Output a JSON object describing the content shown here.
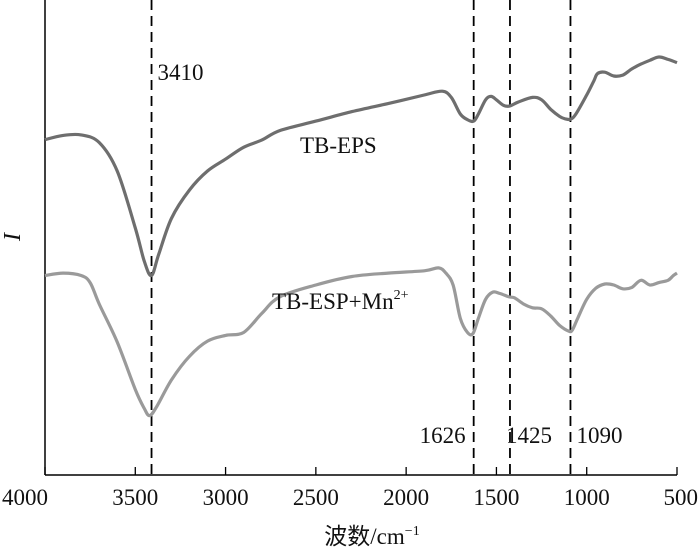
{
  "chart_data": {
    "type": "line",
    "title": "",
    "xlabel": "波数/cm",
    "xlabel_sup": "−1",
    "ylabel": "I",
    "xlim": [
      4000,
      500
    ],
    "x_reversed": true,
    "xticks": [
      4000,
      3500,
      3000,
      2500,
      2000,
      1500,
      1000,
      500
    ],
    "ytick_labels": false,
    "grid": false,
    "series": [
      {
        "name": "TB-EPS",
        "label_sup": "",
        "color": "#6e6e6e",
        "points": [
          [
            4000,
            0.706
          ],
          [
            3900,
            0.715
          ],
          [
            3800,
            0.716
          ],
          [
            3700,
            0.7
          ],
          [
            3600,
            0.64
          ],
          [
            3500,
            0.52
          ],
          [
            3450,
            0.45
          ],
          [
            3410,
            0.42
          ],
          [
            3370,
            0.465
          ],
          [
            3300,
            0.54
          ],
          [
            3200,
            0.6
          ],
          [
            3100,
            0.64
          ],
          [
            3000,
            0.665
          ],
          [
            2900,
            0.69
          ],
          [
            2800,
            0.705
          ],
          [
            2700,
            0.725
          ],
          [
            2500,
            0.745
          ],
          [
            2300,
            0.765
          ],
          [
            2100,
            0.782
          ],
          [
            1900,
            0.8
          ],
          [
            1800,
            0.808
          ],
          [
            1750,
            0.795
          ],
          [
            1700,
            0.76
          ],
          [
            1660,
            0.748
          ],
          [
            1626,
            0.745
          ],
          [
            1600,
            0.76
          ],
          [
            1560,
            0.79
          ],
          [
            1530,
            0.797
          ],
          [
            1500,
            0.79
          ],
          [
            1460,
            0.778
          ],
          [
            1425,
            0.777
          ],
          [
            1380,
            0.785
          ],
          [
            1300,
            0.795
          ],
          [
            1250,
            0.79
          ],
          [
            1200,
            0.77
          ],
          [
            1150,
            0.755
          ],
          [
            1120,
            0.75
          ],
          [
            1090,
            0.749
          ],
          [
            1060,
            0.76
          ],
          [
            1000,
            0.8
          ],
          [
            960,
            0.83
          ],
          [
            940,
            0.845
          ],
          [
            900,
            0.848
          ],
          [
            850,
            0.84
          ],
          [
            800,
            0.842
          ],
          [
            750,
            0.855
          ],
          [
            700,
            0.865
          ],
          [
            650,
            0.873
          ],
          [
            600,
            0.88
          ],
          [
            550,
            0.875
          ],
          [
            500,
            0.868
          ]
        ]
      },
      {
        "name": "TB-ESP+Mn",
        "label_sup": "2+",
        "color": "#9a9a9a",
        "points": [
          [
            4000,
            0.42
          ],
          [
            3900,
            0.425
          ],
          [
            3800,
            0.42
          ],
          [
            3750,
            0.405
          ],
          [
            3700,
            0.36
          ],
          [
            3600,
            0.28
          ],
          [
            3500,
            0.18
          ],
          [
            3450,
            0.14
          ],
          [
            3420,
            0.125
          ],
          [
            3380,
            0.145
          ],
          [
            3300,
            0.2
          ],
          [
            3200,
            0.25
          ],
          [
            3100,
            0.282
          ],
          [
            3000,
            0.294
          ],
          [
            2900,
            0.3
          ],
          [
            2800,
            0.34
          ],
          [
            2700,
            0.375
          ],
          [
            2500,
            0.4
          ],
          [
            2300,
            0.418
          ],
          [
            2100,
            0.425
          ],
          [
            1900,
            0.43
          ],
          [
            1820,
            0.436
          ],
          [
            1780,
            0.425
          ],
          [
            1740,
            0.4
          ],
          [
            1700,
            0.33
          ],
          [
            1660,
            0.3
          ],
          [
            1630,
            0.298
          ],
          [
            1600,
            0.33
          ],
          [
            1560,
            0.37
          ],
          [
            1520,
            0.385
          ],
          [
            1480,
            0.382
          ],
          [
            1430,
            0.375
          ],
          [
            1400,
            0.373
          ],
          [
            1350,
            0.36
          ],
          [
            1300,
            0.352
          ],
          [
            1250,
            0.35
          ],
          [
            1200,
            0.335
          ],
          [
            1150,
            0.315
          ],
          [
            1100,
            0.303
          ],
          [
            1080,
            0.305
          ],
          [
            1050,
            0.33
          ],
          [
            1000,
            0.37
          ],
          [
            950,
            0.393
          ],
          [
            900,
            0.402
          ],
          [
            850,
            0.4
          ],
          [
            800,
            0.392
          ],
          [
            750,
            0.395
          ],
          [
            700,
            0.41
          ],
          [
            650,
            0.4
          ],
          [
            600,
            0.405
          ],
          [
            550,
            0.41
          ],
          [
            520,
            0.42
          ],
          [
            500,
            0.425
          ]
        ],
        "label_anchor": [
          2200,
          0.315
        ]
      }
    ],
    "vlines": [
      {
        "x": 3410,
        "label": "3410"
      },
      {
        "x": 1626,
        "label": "1626"
      },
      {
        "x": 1425,
        "label": "1425"
      },
      {
        "x": 1090,
        "label": "1090"
      }
    ]
  }
}
